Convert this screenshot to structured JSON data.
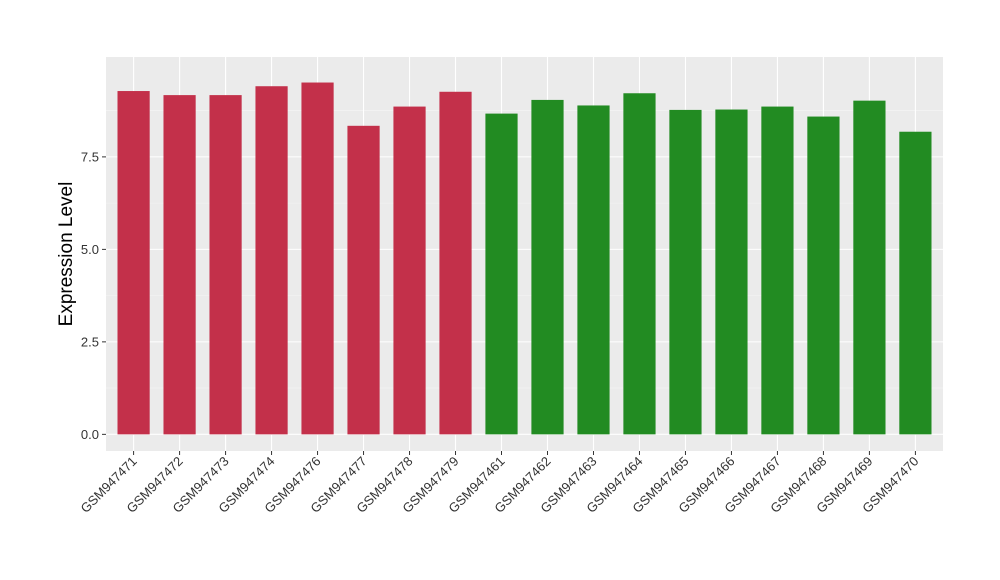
{
  "chart_data": {
    "type": "bar",
    "title": "",
    "xlabel": "",
    "ylabel": "Expression Level",
    "ylim": [
      -0.45,
      10.2
    ],
    "yticks": [
      0.0,
      2.5,
      5.0,
      7.5
    ],
    "ytick_labels": [
      "0.0",
      "2.5",
      "5.0",
      "7.5"
    ],
    "grid": true,
    "panel_background": "#ebebeb",
    "categories": [
      "GSM947471",
      "GSM947472",
      "GSM947473",
      "GSM947474",
      "GSM947476",
      "GSM947477",
      "GSM947478",
      "GSM947479",
      "GSM947461",
      "GSM947462",
      "GSM947463",
      "GSM947464",
      "GSM947465",
      "GSM947466",
      "GSM947467",
      "GSM947468",
      "GSM947469",
      "GSM947470"
    ],
    "values": [
      9.28,
      9.17,
      9.17,
      9.41,
      9.51,
      8.34,
      8.86,
      9.26,
      8.67,
      9.04,
      8.89,
      9.22,
      8.77,
      8.78,
      8.86,
      8.59,
      9.02,
      8.18
    ],
    "bar_colors": [
      "#c3304a",
      "#c3304a",
      "#c3304a",
      "#c3304a",
      "#c3304a",
      "#c3304a",
      "#c3304a",
      "#c3304a",
      "#228b22",
      "#228b22",
      "#228b22",
      "#228b22",
      "#228b22",
      "#228b22",
      "#228b22",
      "#228b22",
      "#228b22",
      "#228b22"
    ]
  }
}
